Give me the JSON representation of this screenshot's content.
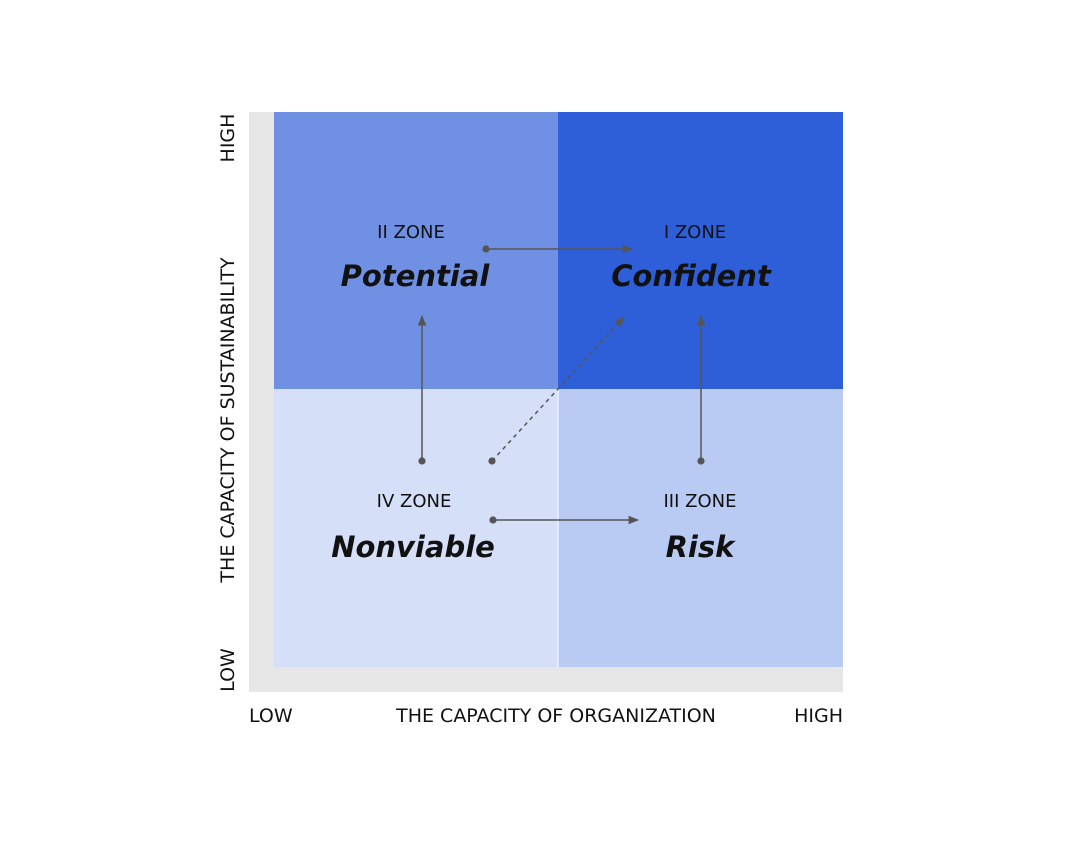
{
  "y_axis": {
    "title": "THE CAPACITY OF SUSTAINABILITY",
    "high": "HIGH",
    "low": "LOW"
  },
  "x_axis": {
    "title": "THE CAPACITY OF ORGANIZATION",
    "low": "LOW",
    "high": "HIGH"
  },
  "quadrants": [
    {
      "zone": "II ZONE",
      "name": "Potential"
    },
    {
      "zone": "I ZONE",
      "name": "Confident"
    },
    {
      "zone": "IV ZONE",
      "name": "Nonviable"
    },
    {
      "zone": "III ZONE",
      "name": "Risk"
    }
  ]
}
